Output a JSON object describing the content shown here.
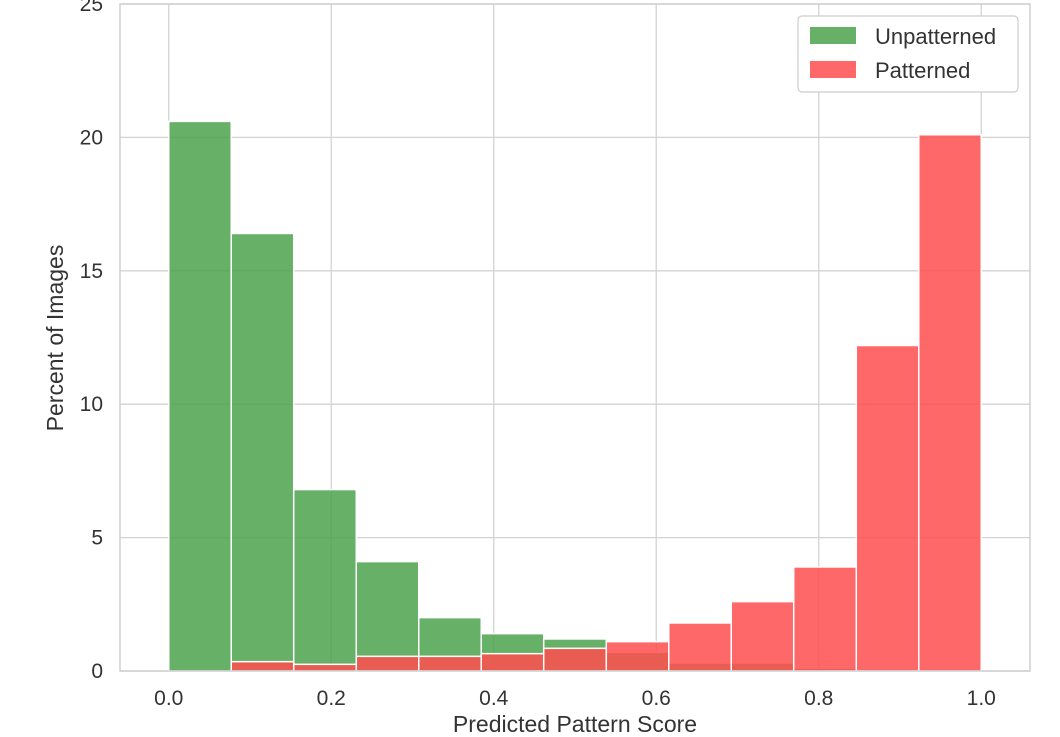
{
  "chart_data": {
    "type": "bar",
    "title": "",
    "xlabel": "Predicted Pattern Score",
    "ylabel": "Percent of Images",
    "xlim": [
      -0.06,
      1.06
    ],
    "ylim": [
      0,
      25
    ],
    "xticks": [
      0.0,
      0.2,
      0.4,
      0.6,
      0.8,
      1.0
    ],
    "xtick_labels": [
      "0.0",
      "0.2",
      "0.4",
      "0.6",
      "0.8",
      "1.0"
    ],
    "yticks": [
      0,
      5,
      10,
      15,
      20,
      25
    ],
    "ytick_labels": [
      "0",
      "5",
      "10",
      "15",
      "20",
      "25"
    ],
    "grid": true,
    "legend_position": "top-right",
    "bin_edges": [
      0.0,
      0.0769,
      0.1538,
      0.2308,
      0.3077,
      0.3846,
      0.4615,
      0.5385,
      0.6154,
      0.6923,
      0.7692,
      0.8462,
      0.9231,
      1.0
    ],
    "series": [
      {
        "name": "Unpatterned",
        "color": "#4ca24c",
        "opacity": 0.85,
        "values": [
          20.6,
          16.4,
          6.8,
          4.1,
          2.0,
          1.4,
          1.2,
          0.7,
          0.3,
          0.3,
          0.1,
          0.0,
          0.0
        ]
      },
      {
        "name": "Patterned",
        "color": "#ff4d4d",
        "opacity": 0.85,
        "values": [
          0.0,
          0.35,
          0.25,
          0.55,
          0.55,
          0.65,
          0.85,
          1.1,
          1.8,
          2.6,
          3.9,
          12.2,
          20.1
        ]
      }
    ]
  }
}
